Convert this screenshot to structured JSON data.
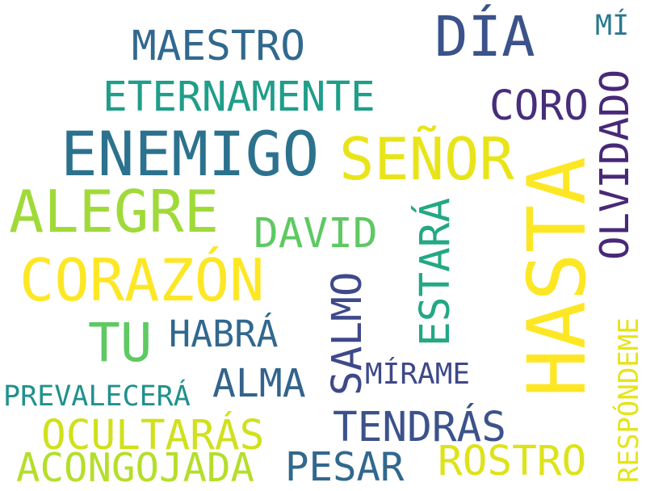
{
  "words": [
    {
      "text": "HASTA",
      "color": "#fde725"
    },
    {
      "text": "DÍA",
      "color": "#3b528b"
    },
    {
      "text": "ENEMIGO",
      "color": "#2c728e"
    },
    {
      "text": "SEÑOR",
      "color": "#e8e419"
    },
    {
      "text": "CORAZÓN",
      "color": "#fde725"
    },
    {
      "text": "ALEGRE",
      "color": "#a0da39"
    },
    {
      "text": "OLVIDADO",
      "color": "#482878"
    },
    {
      "text": "MAESTRO",
      "color": "#31688e"
    },
    {
      "text": "ETERNAMENTE",
      "color": "#1f9e89"
    },
    {
      "text": "CORO",
      "color": "#472d7b"
    },
    {
      "text": "TU",
      "color": "#5ec962"
    },
    {
      "text": "DAVID",
      "color": "#5ec962"
    },
    {
      "text": "ESTARÁ",
      "color": "#22a884"
    },
    {
      "text": "SALMO",
      "color": "#3e4989"
    },
    {
      "text": "HABRÁ",
      "color": "#31688e"
    },
    {
      "text": "ALMA",
      "color": "#33638d"
    },
    {
      "text": "MÍRAME",
      "color": "#3e4989"
    },
    {
      "text": "OCULTARÁS",
      "color": "#d0e11c"
    },
    {
      "text": "TENDRÁS",
      "color": "#3b528b"
    },
    {
      "text": "PREVALECERÁ",
      "color": "#21918c"
    },
    {
      "text": "ACONGOJADA",
      "color": "#b5de2b"
    },
    {
      "text": "PESAR",
      "color": "#31688e"
    },
    {
      "text": "ROSTRO",
      "color": "#dde318"
    },
    {
      "text": "RESPÓNDEME",
      "color": "#e5e419"
    },
    {
      "text": "MÍ",
      "color": "#2a788e"
    }
  ]
}
